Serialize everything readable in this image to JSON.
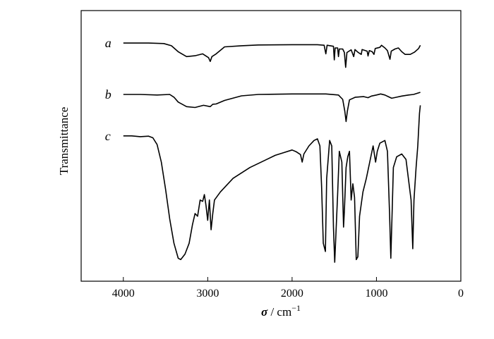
{
  "chart_data": {
    "type": "line",
    "title": "",
    "xlabel_symbol": "σ",
    "xlabel_unit": " / cm",
    "xlabel_exponent": "−1",
    "ylabel": "Transmittance",
    "xlim": [
      4500,
      0
    ],
    "x_reversed": true,
    "xticks": [
      4000,
      3000,
      2000,
      1000,
      0
    ],
    "yticks": [],
    "grid": false,
    "legend": "none",
    "series": [
      {
        "name": "a",
        "points": [
          [
            4000,
            0.88
          ],
          [
            3700,
            0.88
          ],
          [
            3520,
            0.878
          ],
          [
            3430,
            0.87
          ],
          [
            3350,
            0.848
          ],
          [
            3250,
            0.83
          ],
          [
            3150,
            0.833
          ],
          [
            3060,
            0.84
          ],
          [
            2990,
            0.826
          ],
          [
            2970,
            0.812
          ],
          [
            2950,
            0.83
          ],
          [
            2900,
            0.84
          ],
          [
            2800,
            0.866
          ],
          [
            2600,
            0.87
          ],
          [
            2400,
            0.873
          ],
          [
            2000,
            0.874
          ],
          [
            1700,
            0.874
          ],
          [
            1620,
            0.872
          ],
          [
            1600,
            0.84
          ],
          [
            1585,
            0.872
          ],
          [
            1510,
            0.868
          ],
          [
            1500,
            0.818
          ],
          [
            1490,
            0.862
          ],
          [
            1460,
            0.862
          ],
          [
            1450,
            0.83
          ],
          [
            1440,
            0.858
          ],
          [
            1400,
            0.858
          ],
          [
            1380,
            0.845
          ],
          [
            1365,
            0.79
          ],
          [
            1350,
            0.845
          ],
          [
            1300,
            0.855
          ],
          [
            1270,
            0.83
          ],
          [
            1255,
            0.856
          ],
          [
            1220,
            0.846
          ],
          [
            1180,
            0.838
          ],
          [
            1170,
            0.856
          ],
          [
            1110,
            0.85
          ],
          [
            1100,
            0.832
          ],
          [
            1085,
            0.852
          ],
          [
            1050,
            0.848
          ],
          [
            1030,
            0.838
          ],
          [
            1015,
            0.86
          ],
          [
            960,
            0.864
          ],
          [
            940,
            0.872
          ],
          [
            900,
            0.862
          ],
          [
            870,
            0.852
          ],
          [
            840,
            0.82
          ],
          [
            825,
            0.85
          ],
          [
            780,
            0.858
          ],
          [
            740,
            0.862
          ],
          [
            700,
            0.848
          ],
          [
            660,
            0.838
          ],
          [
            600,
            0.838
          ],
          [
            550,
            0.846
          ],
          [
            500,
            0.86
          ],
          [
            480,
            0.872
          ]
        ]
      },
      {
        "name": "b",
        "points": [
          [
            4000,
            0.69
          ],
          [
            3800,
            0.69
          ],
          [
            3600,
            0.688
          ],
          [
            3450,
            0.69
          ],
          [
            3400,
            0.68
          ],
          [
            3350,
            0.662
          ],
          [
            3250,
            0.645
          ],
          [
            3150,
            0.642
          ],
          [
            3050,
            0.65
          ],
          [
            2970,
            0.645
          ],
          [
            2940,
            0.654
          ],
          [
            2900,
            0.655
          ],
          [
            2800,
            0.668
          ],
          [
            2600,
            0.685
          ],
          [
            2400,
            0.69
          ],
          [
            2000,
            0.692
          ],
          [
            1600,
            0.692
          ],
          [
            1450,
            0.688
          ],
          [
            1400,
            0.672
          ],
          [
            1375,
            0.628
          ],
          [
            1360,
            0.59
          ],
          [
            1345,
            0.628
          ],
          [
            1320,
            0.67
          ],
          [
            1250,
            0.68
          ],
          [
            1150,
            0.682
          ],
          [
            1100,
            0.678
          ],
          [
            1060,
            0.684
          ],
          [
            1000,
            0.688
          ],
          [
            950,
            0.692
          ],
          [
            900,
            0.688
          ],
          [
            860,
            0.682
          ],
          [
            820,
            0.676
          ],
          [
            760,
            0.68
          ],
          [
            700,
            0.684
          ],
          [
            620,
            0.688
          ],
          [
            560,
            0.69
          ],
          [
            480,
            0.698
          ]
        ]
      },
      {
        "name": "c",
        "points": [
          [
            4000,
            0.537
          ],
          [
            3900,
            0.537
          ],
          [
            3800,
            0.534
          ],
          [
            3700,
            0.536
          ],
          [
            3650,
            0.53
          ],
          [
            3600,
            0.505
          ],
          [
            3550,
            0.44
          ],
          [
            3500,
            0.34
          ],
          [
            3450,
            0.23
          ],
          [
            3400,
            0.14
          ],
          [
            3350,
            0.085
          ],
          [
            3320,
            0.08
          ],
          [
            3270,
            0.1
          ],
          [
            3220,
            0.14
          ],
          [
            3180,
            0.21
          ],
          [
            3150,
            0.25
          ],
          [
            3120,
            0.24
          ],
          [
            3090,
            0.3
          ],
          [
            3060,
            0.295
          ],
          [
            3040,
            0.32
          ],
          [
            3020,
            0.28
          ],
          [
            3000,
            0.225
          ],
          [
            2980,
            0.3
          ],
          [
            2960,
            0.19
          ],
          [
            2940,
            0.25
          ],
          [
            2920,
            0.3
          ],
          [
            2850,
            0.33
          ],
          [
            2700,
            0.38
          ],
          [
            2500,
            0.42
          ],
          [
            2300,
            0.45
          ],
          [
            2200,
            0.465
          ],
          [
            2100,
            0.475
          ],
          [
            2000,
            0.485
          ],
          [
            1950,
            0.478
          ],
          [
            1900,
            0.468
          ],
          [
            1880,
            0.44
          ],
          [
            1860,
            0.47
          ],
          [
            1800,
            0.5
          ],
          [
            1740,
            0.52
          ],
          [
            1700,
            0.526
          ],
          [
            1670,
            0.5
          ],
          [
            1650,
            0.35
          ],
          [
            1630,
            0.14
          ],
          [
            1605,
            0.11
          ],
          [
            1590,
            0.38
          ],
          [
            1570,
            0.46
          ],
          [
            1555,
            0.52
          ],
          [
            1530,
            0.5
          ],
          [
            1510,
            0.2
          ],
          [
            1495,
            0.07
          ],
          [
            1480,
            0.18
          ],
          [
            1460,
            0.32
          ],
          [
            1440,
            0.48
          ],
          [
            1410,
            0.44
          ],
          [
            1390,
            0.2
          ],
          [
            1380,
            0.26
          ],
          [
            1360,
            0.42
          ],
          [
            1340,
            0.46
          ],
          [
            1320,
            0.48
          ],
          [
            1300,
            0.3
          ],
          [
            1280,
            0.36
          ],
          [
            1260,
            0.31
          ],
          [
            1240,
            0.08
          ],
          [
            1220,
            0.09
          ],
          [
            1200,
            0.24
          ],
          [
            1160,
            0.33
          ],
          [
            1120,
            0.38
          ],
          [
            1080,
            0.44
          ],
          [
            1040,
            0.5
          ],
          [
            1010,
            0.44
          ],
          [
            990,
            0.48
          ],
          [
            960,
            0.51
          ],
          [
            900,
            0.52
          ],
          [
            870,
            0.48
          ],
          [
            845,
            0.25
          ],
          [
            830,
            0.085
          ],
          [
            815,
            0.25
          ],
          [
            800,
            0.42
          ],
          [
            760,
            0.46
          ],
          [
            700,
            0.47
          ],
          [
            650,
            0.45
          ],
          [
            590,
            0.3
          ],
          [
            570,
            0.12
          ],
          [
            555,
            0.3
          ],
          [
            530,
            0.42
          ],
          [
            510,
            0.5
          ],
          [
            490,
            0.62
          ],
          [
            480,
            0.65
          ]
        ]
      }
    ]
  }
}
